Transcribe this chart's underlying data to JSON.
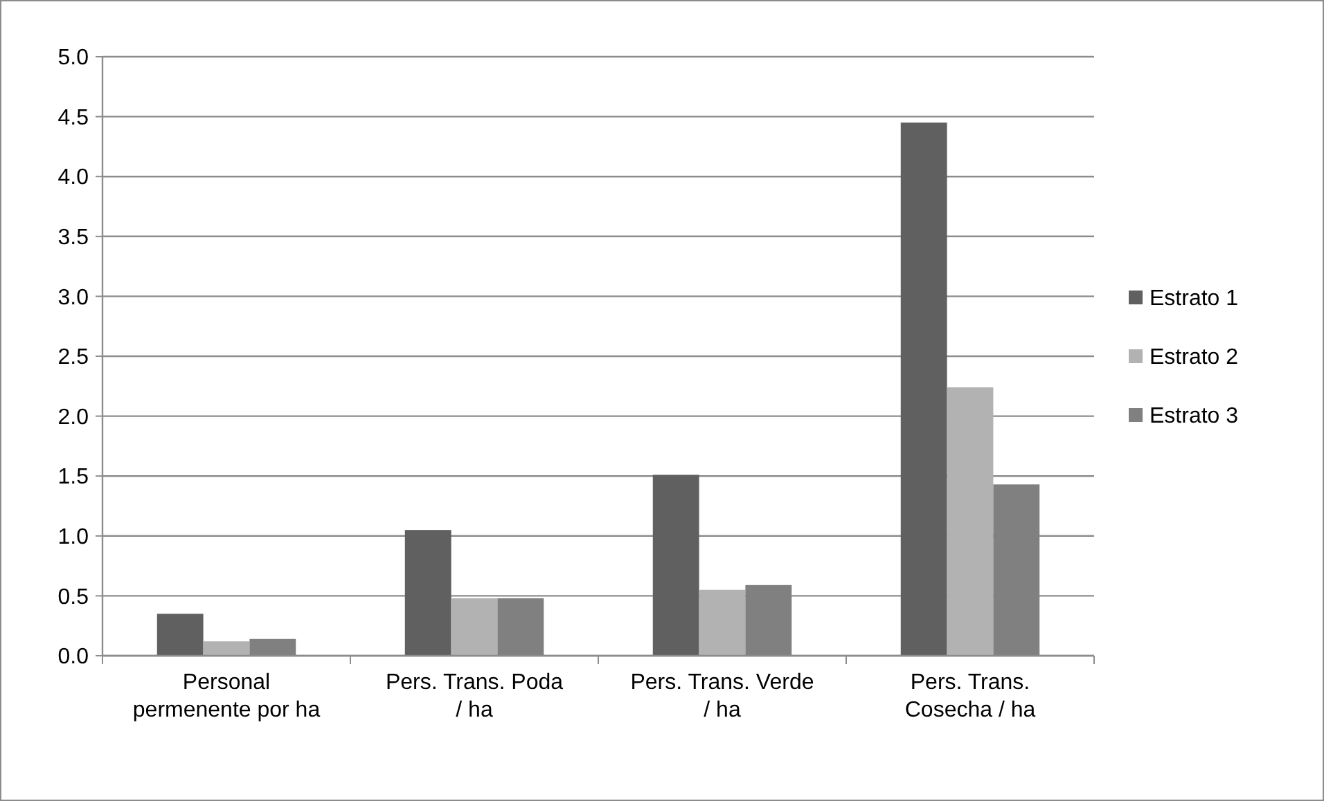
{
  "chart_data": {
    "type": "bar",
    "categories": [
      "Personal permenente por ha",
      "Pers. Trans. Poda / ha",
      "Pers. Trans. Verde / ha",
      "Pers. Trans. Cosecha / ha"
    ],
    "series": [
      {
        "name": "Estrato 1",
        "color": "#606060",
        "values": [
          0.35,
          1.05,
          1.51,
          4.45
        ]
      },
      {
        "name": "Estrato 2",
        "color": "#b2b2b2",
        "values": [
          0.12,
          0.48,
          0.55,
          2.24
        ]
      },
      {
        "name": "Estrato 3",
        "color": "#808080",
        "values": [
          0.14,
          0.48,
          0.59,
          1.43
        ]
      }
    ],
    "ylim": [
      0,
      5
    ],
    "yticks": [
      {
        "value": 0,
        "label": "0.0"
      },
      {
        "value": 0.5,
        "label": "0.5"
      },
      {
        "value": 1,
        "label": "1.0"
      },
      {
        "value": 1.5,
        "label": "1.5"
      },
      {
        "value": 2,
        "label": "2.0"
      },
      {
        "value": 2.5,
        "label": "2.5"
      },
      {
        "value": 3,
        "label": "3.0"
      },
      {
        "value": 3.5,
        "label": "3.5"
      },
      {
        "value": 4,
        "label": "4.0"
      },
      {
        "value": 4.5,
        "label": "4.5"
      },
      {
        "value": 5,
        "label": "5.0"
      }
    ],
    "grid": "y",
    "legend": "right"
  }
}
